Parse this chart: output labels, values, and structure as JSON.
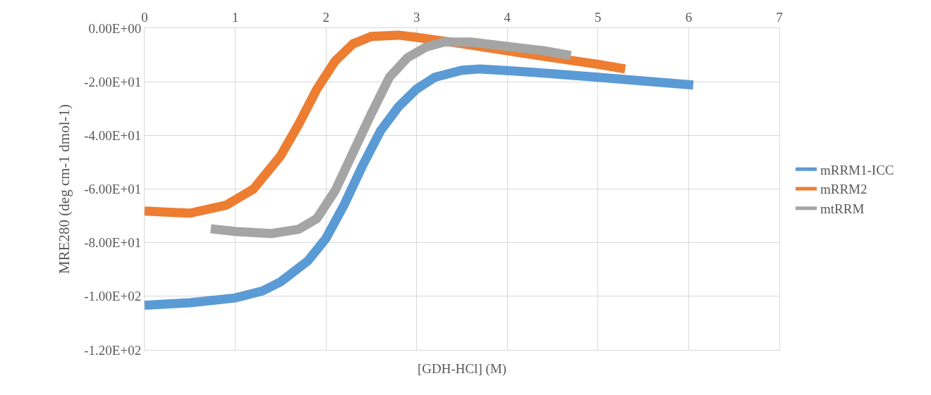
{
  "chart_data": {
    "type": "line",
    "xlabel": "[GDH-HCl] (M)",
    "ylabel": "MRE280 (deg cm-1 dmol-1)",
    "xlim": [
      0,
      7
    ],
    "xticks": [
      0,
      1,
      2,
      3,
      4,
      5,
      6,
      7
    ],
    "ylim": [
      -120,
      0
    ],
    "yticks": [
      {
        "value": -120,
        "label": "-1.20E+02"
      },
      {
        "value": -100,
        "label": "-1.00E+02"
      },
      {
        "value": -80,
        "label": "-8.00E+01"
      },
      {
        "value": -60,
        "label": "-6.00E+01"
      },
      {
        "value": -40,
        "label": "-4.00E+01"
      },
      {
        "value": -20,
        "label": "-2.00E+01"
      },
      {
        "value": 0,
        "label": "0.00E+00"
      }
    ],
    "grid": true,
    "legend": "right",
    "series": [
      {
        "name": "mRRM1-ICC",
        "color": "#5b9bd5",
        "x": [
          0,
          0.5,
          1,
          1.3,
          1.5,
          1.8,
          2.0,
          2.2,
          2.4,
          2.6,
          2.8,
          3.0,
          3.2,
          3.5,
          3.7,
          4.0,
          4.5,
          5.0,
          5.5,
          6.05
        ],
        "values": [
          -103.3,
          -102.4,
          -100.6,
          -98,
          -94.6,
          -86.8,
          -78.4,
          -65.9,
          -51.5,
          -38.4,
          -29.3,
          -22.7,
          -18.3,
          -15.7,
          -15.2,
          -15.8,
          -17,
          -18.3,
          -19.7,
          -21.2
        ]
      },
      {
        "name": "mRRM2",
        "color": "#ed7d31",
        "x": [
          0,
          0.5,
          0.9,
          1.2,
          1.5,
          1.7,
          1.9,
          2.1,
          2.3,
          2.5,
          2.8,
          3.0,
          3.5,
          4.0,
          4.5,
          5.0,
          5.3
        ],
        "values": [
          -68.2,
          -69,
          -66,
          -60,
          -47.6,
          -35.8,
          -22.7,
          -12.3,
          -5.8,
          -3.1,
          -2.6,
          -3.4,
          -5.8,
          -8.4,
          -11,
          -13.5,
          -15.2
        ]
      },
      {
        "name": "mtRRM",
        "color": "#a5a5a5",
        "x": [
          0.73,
          1.0,
          1.4,
          1.7,
          1.9,
          2.1,
          2.3,
          2.5,
          2.7,
          2.9,
          3.1,
          3.3,
          3.6,
          4.0,
          4.4,
          4.7
        ],
        "values": [
          -74.8,
          -75.8,
          -76.6,
          -75,
          -71,
          -60.7,
          -46.3,
          -31.9,
          -18.3,
          -11,
          -7.1,
          -5.2,
          -5.2,
          -6.8,
          -8.4,
          -10.2
        ]
      }
    ]
  }
}
